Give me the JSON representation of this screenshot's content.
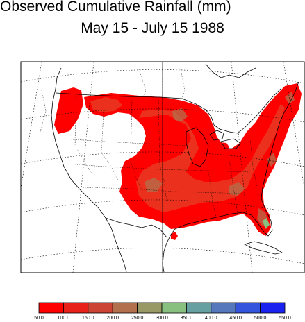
{
  "title": "Observed Cumulative Rainfall (mm)",
  "subtitle": "May 15 - July 15 1988",
  "legend": {
    "labels": [
      "50.0",
      "100.0",
      "150.0",
      "200.0",
      "250.0",
      "300.0",
      "350.0",
      "400.0",
      "450.0",
      "500.0",
      "550.0"
    ],
    "colors": [
      "#ff0000",
      "#e8211a",
      "#cc4433",
      "#b3704d",
      "#999966",
      "#88c080",
      "#66a0a0",
      "#5577bb",
      "#3355dd",
      "#1a22f0"
    ]
  },
  "map_colors": {
    "rain_low": "#ff0000",
    "rain_mid": "#e83a22",
    "rain_high": "#b3704d",
    "rain_green": "#88c080",
    "boundary": "#000000",
    "graticule": "#000000"
  }
}
